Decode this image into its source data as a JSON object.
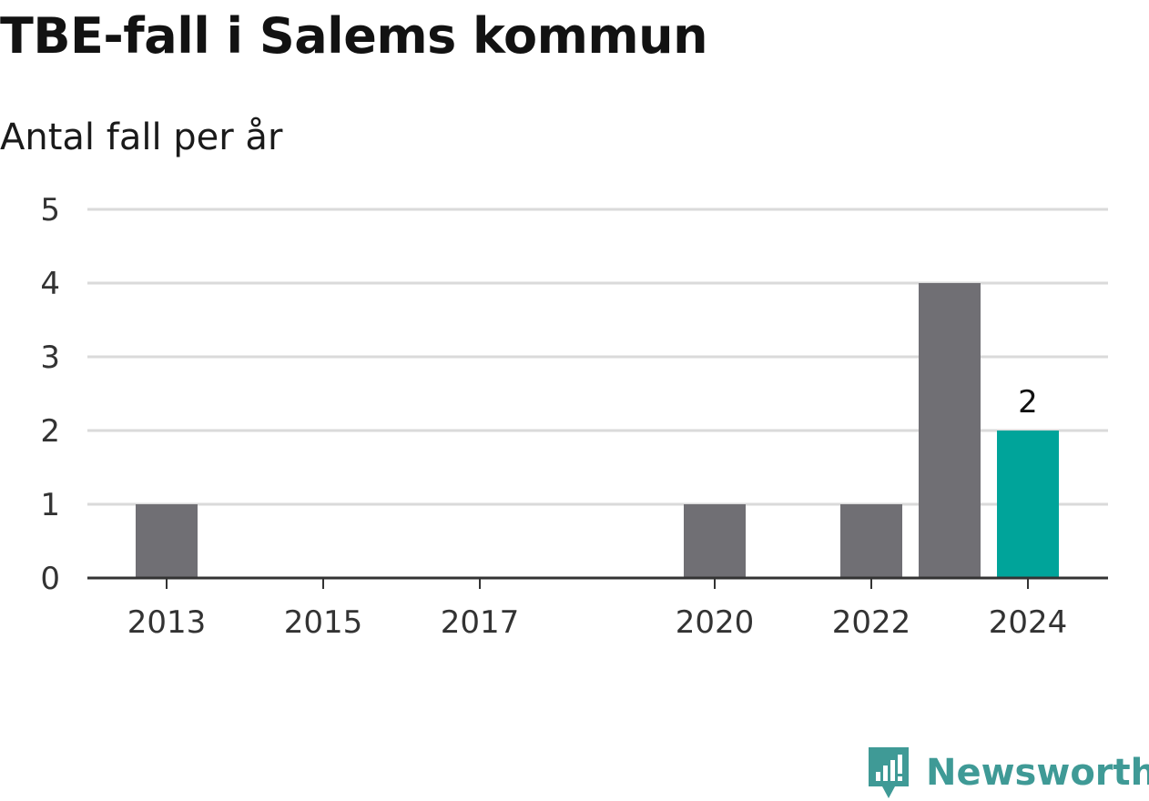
{
  "chart_data": {
    "type": "bar",
    "title": "TBE-fall i Salems kommun",
    "subtitle": "Antal fall per år",
    "x": [
      2013,
      2014,
      2015,
      2016,
      2017,
      2018,
      2019,
      2020,
      2021,
      2022,
      2023,
      2024
    ],
    "values": [
      1,
      0,
      0,
      0,
      0,
      0,
      0,
      1,
      0,
      1,
      4,
      2
    ],
    "x_tick_labels": [
      "2013",
      "2015",
      "2017",
      "2020",
      "2022",
      "2024"
    ],
    "y_ticks": [
      0,
      1,
      2,
      3,
      4,
      5
    ],
    "ylim": [
      0,
      5
    ],
    "grid": true,
    "legend": "none",
    "highlight": {
      "x": 2024,
      "value": 2,
      "label": "2"
    },
    "colors": {
      "bar": "#706f74",
      "highlight": "#00a49a",
      "grid": "#dadada",
      "axis": "#333333"
    }
  },
  "brand": {
    "name": "Newsworthy",
    "color": "#3f9a96",
    "icon": "newsworthy-logo-icon"
  }
}
